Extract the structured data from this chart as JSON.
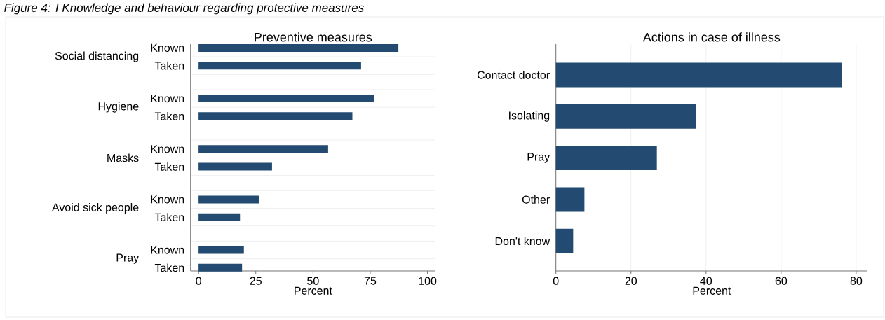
{
  "chart_data": [
    {
      "type": "bar",
      "orientation": "horizontal",
      "title": "Preventive measures",
      "xlabel": "Percent",
      "annotations": [
        "Figure 4: I Knowledge and behaviour regarding protective measures"
      ],
      "categories": [
        "Social distancing",
        "Hygiene",
        "Masks",
        "Avoid sick people",
        "Pray"
      ],
      "series": [
        {
          "name": "Known",
          "color": "#234a70",
          "values": [
            87.3,
            76.8,
            56.6,
            26.3,
            19.8
          ]
        },
        {
          "name": "Taken",
          "color": "#234a70",
          "values": [
            71.0,
            67.2,
            32.1,
            18.1,
            19.0
          ]
        }
      ],
      "xlim": [
        -3.5,
        103.5
      ],
      "xticks": [
        0,
        25,
        50,
        75,
        100
      ],
      "grid": "y"
    },
    {
      "type": "bar",
      "orientation": "horizontal",
      "title": "Actions in case of illness",
      "xlabel": "Percent",
      "categories": [
        "Contact doctor",
        "Isolating",
        "Pray",
        "Other",
        "Don't know"
      ],
      "values": [
        76.1,
        37.4,
        26.9,
        7.6,
        4.6
      ],
      "color": "#234a70",
      "xlim": [
        0,
        83
      ],
      "xticks": [
        0,
        20,
        40,
        60,
        80
      ],
      "grid": "x"
    }
  ]
}
